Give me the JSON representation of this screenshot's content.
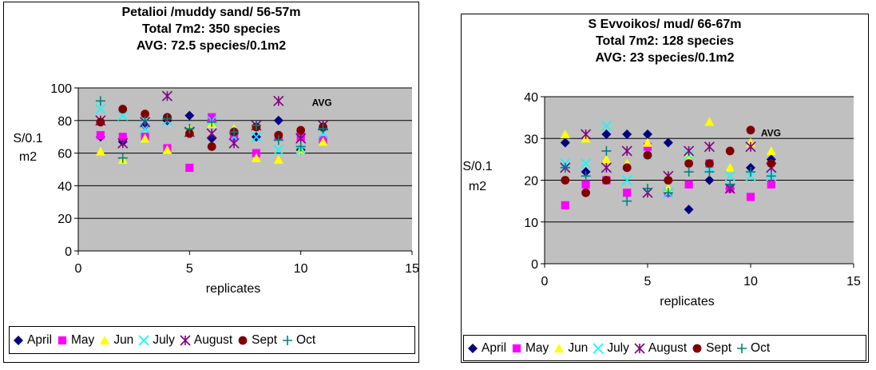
{
  "colors": {
    "plot_background": "#c0c0c0",
    "gridline": "#000000",
    "April": "#000080",
    "May": "#ff00ff",
    "Jun": "#ffff00",
    "July": "#00ffff",
    "August": "#800080",
    "Sept": "#800000",
    "Oct": "#008080"
  },
  "chart_data": [
    {
      "type": "scatter",
      "title_lines": [
        "Petalioi /muddy sand/ 56-57m",
        "Total 7m2: 350 species",
        "AVG: 72.5 species/0.1m2"
      ],
      "xlabel": "replicates",
      "ylabel_lines": [
        "S/0.1",
        "m2"
      ],
      "xlim": [
        0,
        15
      ],
      "ylim": [
        0,
        100
      ],
      "xticks": [
        0,
        5,
        10,
        15
      ],
      "yticks": [
        0,
        20,
        40,
        60,
        80,
        100
      ],
      "grid": "horizontal",
      "legend_position": "bottom",
      "annotation": {
        "text": "AVG",
        "x": 10.5,
        "y": 89
      },
      "series": [
        {
          "name": "April",
          "marker": "diamond",
          "points": [
            [
              1,
              70
            ],
            [
              2,
              67
            ],
            [
              3,
              77
            ],
            [
              4,
              80
            ],
            [
              5,
              83
            ],
            [
              6,
              69
            ],
            [
              7,
              72
            ],
            [
              8,
              70
            ],
            [
              9,
              80
            ],
            [
              10,
              62
            ],
            [
              11,
              75
            ]
          ]
        },
        {
          "name": "May",
          "marker": "square",
          "points": [
            [
              1,
              71
            ],
            [
              2,
              70
            ],
            [
              3,
              70
            ],
            [
              4,
              63
            ],
            [
              5,
              51
            ],
            [
              6,
              82
            ],
            [
              7,
              70
            ],
            [
              8,
              60
            ],
            [
              9,
              70
            ],
            [
              10,
              70
            ],
            [
              11,
              68
            ]
          ]
        },
        {
          "name": "Jun",
          "marker": "triangle",
          "points": [
            [
              1,
              61
            ],
            [
              2,
              56
            ],
            [
              3,
              69
            ],
            [
              4,
              62
            ],
            [
              5,
              75
            ],
            [
              6,
              78
            ],
            [
              7,
              75
            ],
            [
              8,
              57
            ],
            [
              9,
              56
            ],
            [
              10,
              62
            ],
            [
              11,
              67
            ]
          ]
        },
        {
          "name": "July",
          "marker": "x",
          "points": [
            [
              1,
              87
            ],
            [
              2,
              83
            ],
            [
              3,
              75
            ],
            [
              4,
              80
            ],
            [
              5,
              73
            ],
            [
              6,
              80
            ],
            [
              7,
              70
            ],
            [
              8,
              70
            ],
            [
              9,
              62
            ],
            [
              10,
              62
            ],
            [
              11,
              72
            ]
          ]
        },
        {
          "name": "August",
          "marker": "star",
          "points": [
            [
              1,
              80
            ],
            [
              2,
              66
            ],
            [
              3,
              79
            ],
            [
              4,
              95
            ],
            [
              5,
              73
            ],
            [
              6,
              72
            ],
            [
              7,
              66
            ],
            [
              8,
              77
            ],
            [
              9,
              92
            ],
            [
              10,
              69
            ],
            [
              11,
              77
            ]
          ]
        },
        {
          "name": "Sept",
          "marker": "circle",
          "points": [
            [
              1,
              79
            ],
            [
              2,
              87
            ],
            [
              3,
              84
            ],
            [
              4,
              82
            ],
            [
              5,
              72
            ],
            [
              6,
              64
            ],
            [
              7,
              73
            ],
            [
              8,
              76
            ],
            [
              9,
              71
            ],
            [
              10,
              74
            ],
            [
              11,
              76
            ]
          ]
        },
        {
          "name": "Oct",
          "marker": "plus",
          "points": [
            [
              1,
              92
            ],
            [
              2,
              57
            ],
            [
              3,
              80
            ],
            [
              4,
              81
            ],
            [
              5,
              75
            ],
            [
              6,
              79
            ],
            [
              7,
              73
            ],
            [
              8,
              77
            ],
            [
              9,
              68
            ],
            [
              10,
              64
            ],
            [
              11,
              75
            ]
          ]
        }
      ]
    },
    {
      "type": "scatter",
      "title_lines": [
        "S Evvoikos/ mud/ 66-67m",
        "Total 7m2: 128 species",
        "AVG: 23 species/0.1m2"
      ],
      "xlabel": "replicates",
      "ylabel_lines": [
        "S/0.1",
        "m2"
      ],
      "xlim": [
        0,
        15
      ],
      "ylim": [
        0,
        40
      ],
      "xticks": [
        0,
        5,
        10,
        15
      ],
      "yticks": [
        0,
        10,
        20,
        30,
        40
      ],
      "grid": "horizontal",
      "legend_position": "bottom",
      "annotation": {
        "text": "AVG",
        "x": 10.5,
        "y": 30.5
      },
      "series": [
        {
          "name": "April",
          "marker": "diamond",
          "points": [
            [
              1,
              29
            ],
            [
              2,
              22
            ],
            [
              3,
              31
            ],
            [
              4,
              31
            ],
            [
              5,
              31
            ],
            [
              6,
              29
            ],
            [
              7,
              13
            ],
            [
              8,
              20
            ],
            [
              9,
              18
            ],
            [
              10,
              23
            ],
            [
              11,
              25
            ]
          ]
        },
        {
          "name": "May",
          "marker": "square",
          "points": [
            [
              1,
              14
            ],
            [
              2,
              19
            ],
            [
              3,
              20
            ],
            [
              4,
              17
            ],
            [
              5,
              28
            ],
            [
              6,
              17
            ],
            [
              7,
              19
            ],
            [
              8,
              24
            ],
            [
              9,
              18
            ],
            [
              10,
              16
            ],
            [
              11,
              19
            ]
          ]
        },
        {
          "name": "Jun",
          "marker": "triangle",
          "points": [
            [
              1,
              31
            ],
            [
              2,
              30
            ],
            [
              3,
              25
            ],
            [
              4,
              24
            ],
            [
              5,
              29
            ],
            [
              6,
              18
            ],
            [
              7,
              26
            ],
            [
              8,
              34
            ],
            [
              9,
              23
            ],
            [
              10,
              29
            ],
            [
              11,
              27
            ]
          ]
        },
        {
          "name": "July",
          "marker": "x",
          "points": [
            [
              1,
              24
            ],
            [
              2,
              24
            ],
            [
              3,
              33
            ],
            [
              4,
              20
            ],
            [
              5,
              26
            ],
            [
              6,
              17
            ],
            [
              7,
              26
            ],
            [
              8,
              23
            ],
            [
              9,
              21
            ],
            [
              10,
              21
            ],
            [
              11,
              21
            ]
          ]
        },
        {
          "name": "August",
          "marker": "star",
          "points": [
            [
              1,
              23
            ],
            [
              2,
              31
            ],
            [
              3,
              23
            ],
            [
              4,
              27
            ],
            [
              5,
              17
            ],
            [
              6,
              21
            ],
            [
              7,
              27
            ],
            [
              8,
              28
            ],
            [
              9,
              18
            ],
            [
              10,
              28
            ],
            [
              11,
              23
            ]
          ]
        },
        {
          "name": "Sept",
          "marker": "circle",
          "points": [
            [
              1,
              20
            ],
            [
              2,
              17
            ],
            [
              3,
              20
            ],
            [
              4,
              23
            ],
            [
              5,
              26
            ],
            [
              6,
              20
            ],
            [
              7,
              24
            ],
            [
              8,
              24
            ],
            [
              9,
              27
            ],
            [
              10,
              32
            ],
            [
              11,
              24
            ]
          ]
        },
        {
          "name": "Oct",
          "marker": "plus",
          "points": [
            [
              1,
              23
            ],
            [
              2,
              21
            ],
            [
              3,
              27
            ],
            [
              4,
              15
            ],
            [
              5,
              18
            ],
            [
              6,
              17
            ],
            [
              7,
              22
            ],
            [
              8,
              22
            ],
            [
              9,
              19
            ],
            [
              10,
              22
            ],
            [
              11,
              21
            ]
          ]
        }
      ]
    }
  ]
}
